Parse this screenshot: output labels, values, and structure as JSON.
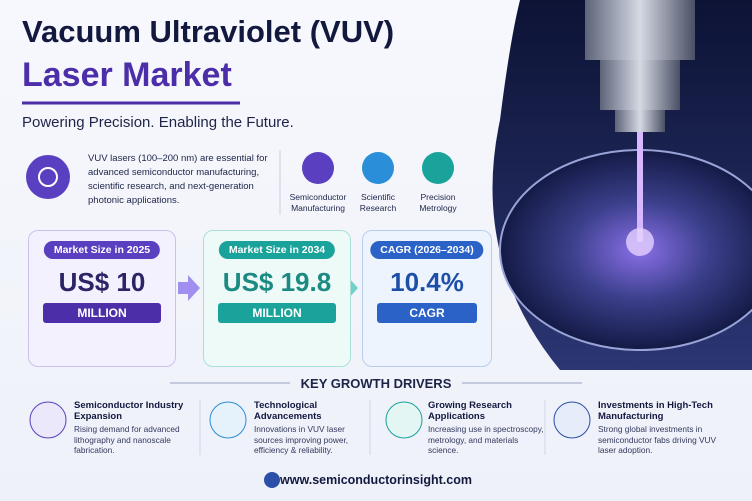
{
  "header": {
    "title_line1": "Vacuum Ultraviolet (VUV)",
    "title_line2": "Laser Market",
    "tagline": "Powering Precision. Enabling the Future."
  },
  "intro": "VUV lasers (100–200 nm) are essential for advanced semiconductor manufacturing, scientific research, and next-generation photonic applications.",
  "applications": [
    {
      "line1": "Semiconductor",
      "line2": "Manufacturing"
    },
    {
      "line1": "Scientific",
      "line2": "Research"
    },
    {
      "line1": "Precision",
      "line2": "Metrology"
    }
  ],
  "stats": [
    {
      "label": "Market Size in 2025",
      "value": "US$ 10",
      "unit": "MILLION"
    },
    {
      "label": "Market Size in 2034",
      "value": "US$ 19.8",
      "unit": "MILLION"
    },
    {
      "label": "CAGR (2026–2034)",
      "value": "10.4%",
      "unit": "CAGR"
    }
  ],
  "drivers_heading": "KEY GROWTH DRIVERS",
  "drivers": [
    {
      "title": "Semiconductor Industry Expansion",
      "text": "Rising demand for advanced lithography and nanoscale fabrication."
    },
    {
      "title": "Technological Advancements",
      "text": "Innovations in VUV laser sources improving power, efficiency & reliability."
    },
    {
      "title": "Growing Research Applications",
      "text": "Increasing use in spectroscopy, metrology, and materials science."
    },
    {
      "title": "Investments in High-Tech Manufacturing",
      "text": "Strong global investments in semiconductor fabs driving VUV laser adoption."
    }
  ],
  "footer": "www.semiconductorinsight.com"
}
